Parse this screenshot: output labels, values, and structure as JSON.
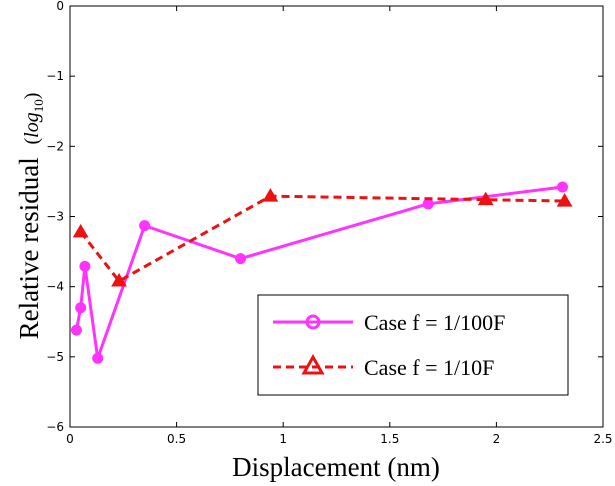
{
  "chart_data": {
    "type": "line",
    "title": "",
    "xlabel": "Displacement (nm)",
    "ylabel_main": "Relative residual",
    "ylabel_sub": "log",
    "ylabel_sub_index": "10",
    "xlim": [
      0,
      2.5
    ],
    "ylim": [
      -6,
      0
    ],
    "xticks": [
      "0",
      "0.5",
      "1",
      "1.5",
      "2",
      "2.5"
    ],
    "yticks": [
      "0",
      "−1",
      "−2",
      "−3",
      "−4",
      "−5",
      "−6"
    ],
    "grid": false,
    "legend_position": "bottom-right",
    "series": [
      {
        "name": "Case f = 1/100F",
        "color": "#ff33ff",
        "marker": "circle",
        "linestyle": "solid",
        "x": [
          0.03,
          0.05,
          0.07,
          0.13,
          0.35,
          0.8,
          1.68,
          2.31
        ],
        "y": [
          -4.62,
          -4.3,
          -3.71,
          -5.02,
          -3.13,
          -3.6,
          -2.82,
          -2.58
        ]
      },
      {
        "name": "Case f = 1/10F",
        "color": "#ee1111",
        "marker": "triangle",
        "linestyle": "dashed",
        "x": [
          0.05,
          0.23,
          0.94,
          1.95,
          2.32
        ],
        "y": [
          -3.22,
          -3.92,
          -2.71,
          -2.76,
          -2.78
        ]
      }
    ]
  }
}
